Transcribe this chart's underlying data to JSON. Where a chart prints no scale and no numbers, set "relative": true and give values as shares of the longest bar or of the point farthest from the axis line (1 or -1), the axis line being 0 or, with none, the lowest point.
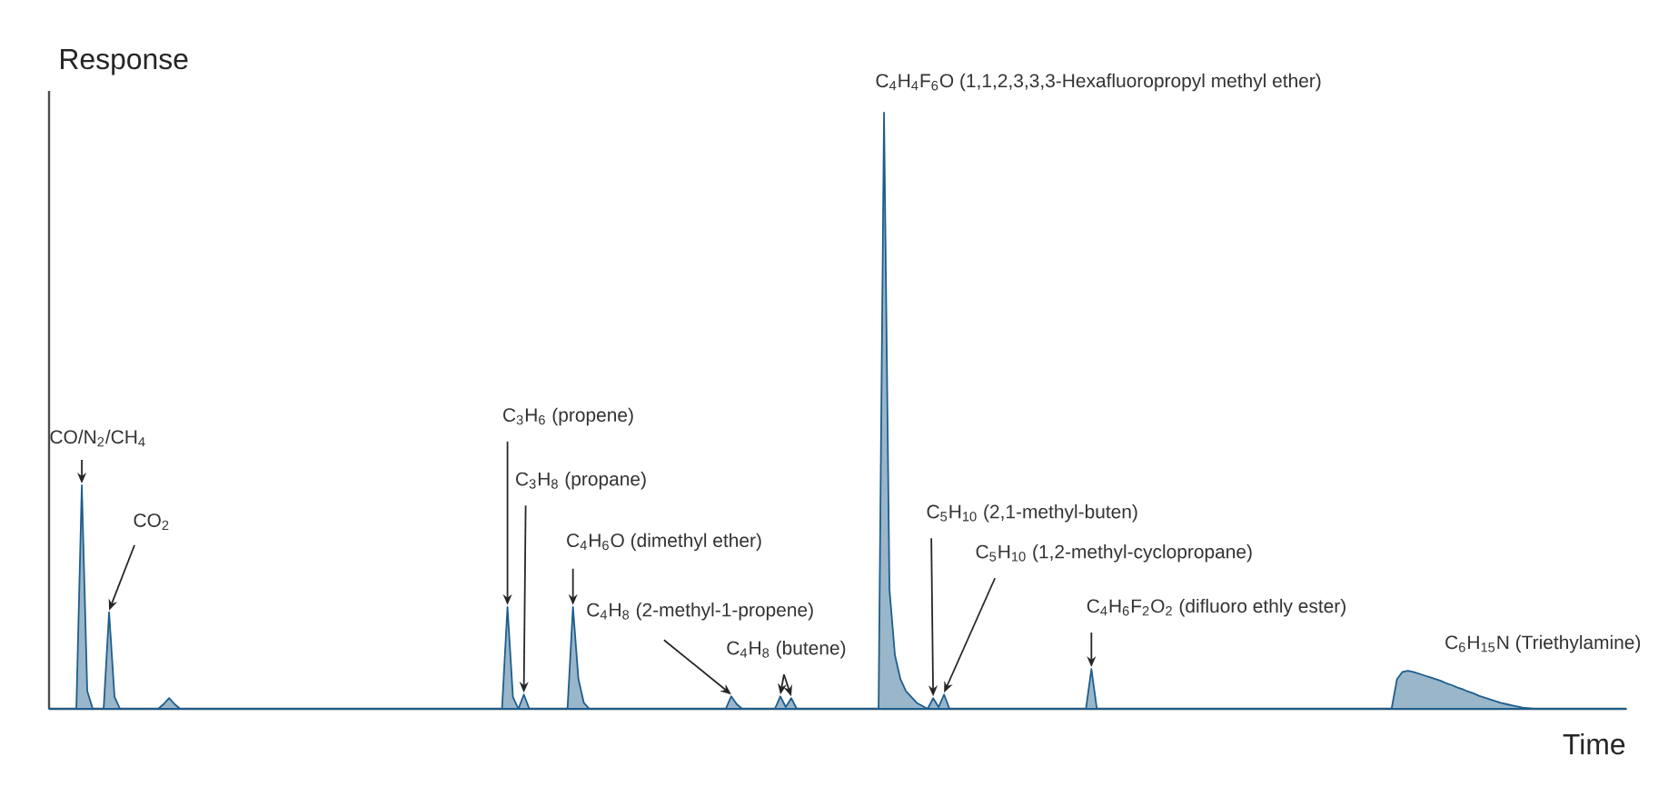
{
  "chart_data": {
    "type": "area",
    "relative": true,
    "xlabel": "Time",
    "ylabel": "Response",
    "color": "#1d5d8c",
    "categories": [
      null,
      null,
      null,
      null,
      null,
      null,
      null,
      null,
      null,
      null,
      null,
      null,
      null,
      null,
      null,
      null,
      null,
      null,
      null,
      null,
      null,
      null,
      null,
      null,
      null,
      null,
      null,
      null,
      null,
      null,
      null,
      null,
      null,
      null,
      null,
      null,
      null,
      null,
      null,
      null,
      null,
      null,
      null,
      null,
      null,
      null,
      null,
      null,
      null,
      null,
      null,
      null,
      null,
      null,
      null,
      null,
      null,
      null,
      null,
      null,
      null,
      null,
      null,
      null,
      null,
      null,
      null,
      null,
      null,
      null,
      null,
      null,
      null,
      null,
      null,
      null,
      null,
      null,
      null,
      null,
      null,
      null,
      null,
      null,
      null,
      null,
      null,
      null,
      null,
      null,
      null,
      null,
      null,
      null,
      null,
      null,
      null,
      null,
      null,
      null,
      null,
      null,
      null,
      null,
      null,
      null,
      null,
      null,
      null,
      null,
      null,
      null,
      null,
      null,
      null,
      null,
      null,
      null,
      null,
      null,
      null,
      null,
      null,
      null,
      null,
      null,
      null,
      null,
      null,
      null,
      null,
      null,
      null,
      null,
      null,
      null,
      null,
      null,
      null,
      null,
      null,
      null,
      null,
      null,
      null,
      null,
      null,
      null,
      null,
      null,
      null,
      null,
      null,
      null,
      null,
      null,
      null,
      null,
      null,
      null,
      null,
      null,
      null,
      null,
      null,
      null,
      null,
      null,
      null,
      null,
      null,
      null,
      null,
      null,
      null,
      null,
      null,
      null,
      null,
      null,
      null,
      null,
      null,
      null,
      null,
      null,
      null,
      null,
      null,
      null,
      null,
      null,
      null,
      null,
      null,
      null,
      null,
      null,
      null,
      null,
      null,
      null,
      null,
      null,
      null,
      null,
      null,
      null,
      null,
      null,
      null,
      null,
      null,
      null,
      null,
      null,
      null,
      null,
      null,
      null,
      null,
      null,
      null,
      null,
      null,
      null,
      null,
      null,
      null,
      null,
      null,
      null,
      null,
      null,
      null,
      null,
      null,
      null,
      null,
      null,
      null,
      null,
      null,
      null,
      null,
      null,
      null,
      null,
      null,
      null,
      null,
      null,
      null,
      null,
      null,
      null,
      null,
      null,
      null,
      null,
      null,
      null,
      null,
      null,
      null,
      null,
      null,
      null,
      null,
      null,
      null,
      null,
      null,
      null,
      null,
      null,
      null,
      null,
      null,
      null,
      null,
      null,
      null,
      null,
      null,
      null,
      null,
      null,
      null,
      null
    ],
    "values": [
      0,
      0,
      0,
      0,
      0,
      0,
      0.375,
      0.03,
      0,
      0,
      0,
      0.162,
      0.02,
      0,
      0,
      0,
      0,
      0,
      0,
      0,
      0,
      0.008,
      0.018,
      0.008,
      0,
      0,
      0,
      0,
      0,
      0,
      0,
      0,
      0,
      0,
      0,
      0,
      0,
      0,
      0,
      0,
      0,
      0,
      0,
      0,
      0,
      0,
      0,
      0,
      0,
      0,
      0,
      0,
      0,
      0,
      0,
      0,
      0,
      0,
      0,
      0,
      0,
      0,
      0,
      0,
      0,
      0,
      0,
      0,
      0,
      0,
      0,
      0,
      0,
      0,
      0,
      0,
      0,
      0,
      0,
      0,
      0,
      0,
      0,
      0,
      0.171,
      0.02,
      0,
      0.024,
      0,
      0,
      0,
      0,
      0,
      0,
      0,
      0,
      0.171,
      0.05,
      0.01,
      0,
      0,
      0,
      0,
      0,
      0,
      0,
      0,
      0,
      0,
      0,
      0,
      0,
      0,
      0,
      0,
      0,
      0,
      0,
      0,
      0,
      0,
      0,
      0,
      0,
      0,
      0.021,
      0.008,
      0,
      0,
      0,
      0,
      0,
      0,
      0,
      0.021,
      0.003,
      0.018,
      0,
      0,
      0,
      0,
      0,
      0,
      0,
      0,
      0,
      0,
      0,
      0,
      0,
      0,
      0,
      0,
      1.0,
      0.2,
      0.09,
      0.05,
      0.03,
      0.02,
      0.01,
      0.005,
      0,
      0.018,
      0.003,
      0.024,
      0,
      0,
      0,
      0,
      0,
      0,
      0,
      0,
      0,
      0,
      0,
      0,
      0,
      0,
      0,
      0,
      0,
      0,
      0,
      0,
      0,
      0,
      0,
      0,
      0,
      0,
      0.067,
      0,
      0,
      0,
      0,
      0,
      0,
      0,
      0,
      0,
      0,
      0,
      0,
      0,
      0,
      0,
      0,
      0,
      0,
      0,
      0,
      0,
      0,
      0,
      0,
      0,
      0,
      0,
      0,
      0,
      0,
      0,
      0,
      0,
      0,
      0,
      0,
      0,
      0,
      0,
      0,
      0,
      0,
      0,
      0,
      0,
      0,
      0,
      0,
      0,
      0,
      0,
      0,
      0,
      0,
      0,
      0.05,
      0.062,
      0.064,
      0.062,
      0.059,
      0.056,
      0.053,
      0.05,
      0.047,
      0.043,
      0.04,
      0.036,
      0.033,
      0.029,
      0.026,
      0.022,
      0.019,
      0.016,
      0.013,
      0.01,
      0.008,
      0.006,
      0.004,
      0.002,
      0.001,
      0,
      0,
      0,
      0,
      0,
      0,
      0,
      0,
      0,
      0,
      0,
      0,
      0,
      0,
      0,
      0,
      0,
      0
    ],
    "annotations": [
      "CO/N$_{2}$/CH$_{4}$",
      "CO$_{2}$",
      "C$_{3}$H$_{6}$ (propene)",
      "C$_{3}$H$_{8}$ (propane)",
      "C$_{4}$H$_{6}$O (dimethyl ether)",
      "C$_{4}$H$_{8}$ (2-methyl-1-propene)",
      "C$_{4}$H$_{8}$ (butene)",
      "C$_{4}$H$_{4}$F$_{6}$O (1,1,2,3,3,3-Hexafluoropropyl methyl ether)",
      "C$_{5}$H$_{10}$ (2,1-methyl-buten)",
      "C$_{5}$H$_{10}$ (1,2-methyl-cyclopropane)",
      "C$_{4}$H$_{6}$F$_{2}$O$_{2}$ (difluoro ethly ester)",
      "C$_{6}$H$_{15}$N (Triethylamine)"
    ]
  }
}
